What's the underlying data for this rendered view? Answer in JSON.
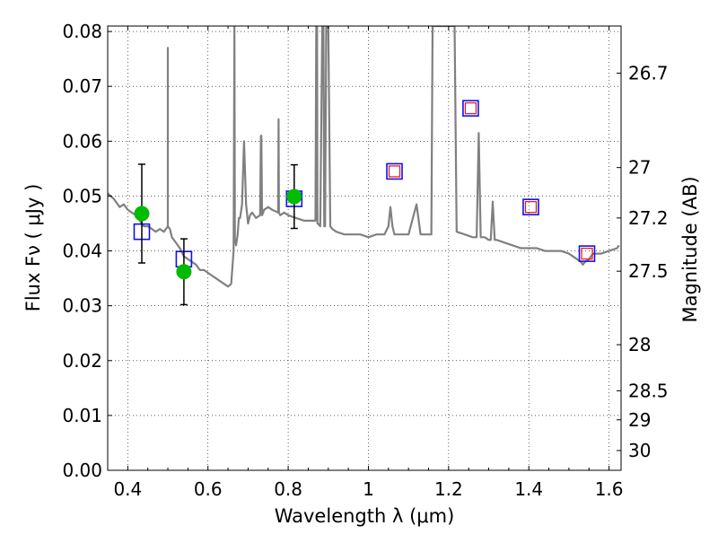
{
  "chart_data": {
    "type": "line",
    "xlabel": "Wavelength  λ (μm)",
    "ylabel": "Flux  Fν  ( μJy )",
    "y2label": "Magnitude (AB)",
    "xlim": [
      0.35,
      1.63
    ],
    "ylim": [
      0.0,
      0.081
    ],
    "grid": true,
    "x_ticks": [
      0.4,
      0.6,
      0.8,
      1.0,
      1.2,
      1.4,
      1.6
    ],
    "x_tick_labels": [
      "0.4",
      "0.6",
      "0.8",
      "1",
      "1.2",
      "1.4",
      "1.6"
    ],
    "y_ticks": [
      0.0,
      0.01,
      0.02,
      0.03,
      0.04,
      0.05,
      0.06,
      0.07,
      0.08
    ],
    "y_tick_labels": [
      "0.00",
      "0.01",
      "0.02",
      "0.03",
      "0.04",
      "0.05",
      "0.06",
      "0.07",
      "0.08"
    ],
    "y2_ticks": [
      {
        "flux": 0.0724,
        "label": "26.7"
      },
      {
        "flux": 0.0552,
        "label": "27"
      },
      {
        "flux": 0.046,
        "label": "27.2"
      },
      {
        "flux": 0.0363,
        "label": "27.5"
      },
      {
        "flux": 0.0229,
        "label": "28"
      },
      {
        "flux": 0.0145,
        "label": "28.5"
      },
      {
        "flux": 0.0092,
        "label": "29"
      },
      {
        "flux": 0.0036,
        "label": "30"
      }
    ],
    "series": [
      {
        "name": "model spectrum",
        "color": "#808080",
        "x": [
          0.35,
          0.365,
          0.38,
          0.39,
          0.4,
          0.41,
          0.42,
          0.43,
          0.44,
          0.45,
          0.46,
          0.47,
          0.48,
          0.49,
          0.5,
          0.5,
          0.5,
          0.5,
          0.505,
          0.51,
          0.52,
          0.53,
          0.54,
          0.55,
          0.56,
          0.57,
          0.58,
          0.59,
          0.6,
          0.61,
          0.62,
          0.63,
          0.64,
          0.65,
          0.658,
          0.664,
          0.666,
          0.666,
          0.667,
          0.668,
          0.67,
          0.674,
          0.677,
          0.68,
          0.685,
          0.69,
          0.695,
          0.7,
          0.705,
          0.71,
          0.72,
          0.73,
          0.732,
          0.733,
          0.735,
          0.74,
          0.75,
          0.76,
          0.775,
          0.776,
          0.777,
          0.78,
          0.79,
          0.8,
          0.82,
          0.84,
          0.86,
          0.868,
          0.87,
          0.872,
          0.873,
          0.874,
          0.88,
          0.885,
          0.888,
          0.89,
          0.892,
          0.895,
          0.9,
          0.905,
          0.91,
          0.92,
          0.94,
          0.96,
          0.98,
          1.0,
          1.02,
          1.04,
          1.05,
          1.055,
          1.06,
          1.065,
          1.08,
          1.1,
          1.12,
          1.13,
          1.14,
          1.15,
          1.157,
          1.16,
          1.215,
          1.22,
          1.24,
          1.26,
          1.27,
          1.275,
          1.28,
          1.29,
          1.3,
          1.305,
          1.31,
          1.315,
          1.32,
          1.34,
          1.36,
          1.38,
          1.4,
          1.42,
          1.44,
          1.46,
          1.48,
          1.5,
          1.52,
          1.53,
          1.535,
          1.54,
          1.55,
          1.56,
          1.58,
          1.6,
          1.62,
          1.625
        ],
        "y": [
          0.0505,
          0.0495,
          0.048,
          0.0485,
          0.0475,
          0.047,
          0.0465,
          0.0455,
          0.0445,
          0.0445,
          0.044,
          0.0435,
          0.044,
          0.0435,
          0.0445,
          0.077,
          0.077,
          0.0445,
          0.044,
          0.0425,
          0.0415,
          0.0405,
          0.039,
          0.0385,
          0.038,
          0.0375,
          0.0365,
          0.0365,
          0.036,
          0.0355,
          0.035,
          0.0345,
          0.034,
          0.0335,
          0.034,
          0.04,
          0.081,
          0.081,
          0.042,
          0.042,
          0.041,
          0.043,
          0.046,
          0.046,
          0.0485,
          0.06,
          0.0485,
          0.045,
          0.0465,
          0.047,
          0.046,
          0.0465,
          0.061,
          0.061,
          0.0465,
          0.0475,
          0.048,
          0.0475,
          0.047,
          0.064,
          0.047,
          0.0465,
          0.047,
          0.0465,
          0.046,
          0.0455,
          0.0455,
          0.0455,
          0.081,
          0.081,
          0.045,
          0.045,
          0.0445,
          0.081,
          0.081,
          0.0445,
          0.0445,
          0.081,
          0.081,
          0.0445,
          0.044,
          0.0435,
          0.043,
          0.043,
          0.043,
          0.0425,
          0.043,
          0.043,
          0.0445,
          0.048,
          0.0445,
          0.043,
          0.043,
          0.043,
          0.0485,
          0.043,
          0.043,
          0.043,
          0.043,
          0.081,
          0.081,
          0.0435,
          0.043,
          0.0425,
          0.0425,
          0.0615,
          0.0425,
          0.0425,
          0.042,
          0.042,
          0.049,
          0.042,
          0.042,
          0.0415,
          0.041,
          0.0405,
          0.0405,
          0.0405,
          0.04,
          0.04,
          0.04,
          0.0395,
          0.0385,
          0.038,
          0.0375,
          0.038,
          0.0385,
          0.0395,
          0.0395,
          0.04,
          0.0405,
          0.041
        ]
      },
      {
        "name": "model photometry (blue squares)",
        "color": "#1010ee",
        "x": [
          0.435,
          0.54,
          0.815,
          1.065,
          1.255,
          1.405,
          1.545
        ],
        "y": [
          0.0435,
          0.0385,
          0.0495,
          0.0545,
          0.066,
          0.048,
          0.0395
        ]
      },
      {
        "name": "photometry (red squares)",
        "color": "#ee1010",
        "x": [
          1.065,
          1.255,
          1.405,
          1.545
        ],
        "y": [
          0.0545,
          0.066,
          0.048,
          0.0395
        ]
      },
      {
        "name": "observed (green circles)",
        "color": "#00bb00",
        "x": [
          0.435,
          0.54,
          0.815
        ],
        "y": [
          0.0468,
          0.0362,
          0.0499
        ],
        "yerr": [
          0.009,
          0.006,
          0.0058
        ]
      }
    ]
  }
}
